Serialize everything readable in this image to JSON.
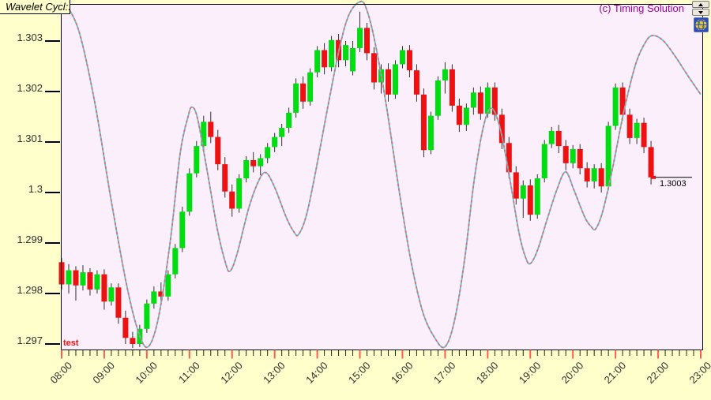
{
  "header": {
    "title": "Wavelet Cycl:.",
    "copyright": "(c) Timing Solution"
  },
  "controls": {
    "spinner_up_icon": "up-arrow",
    "spinner_down_icon": "down-arrow",
    "globe_icon": "globe"
  },
  "labels": {
    "series_tag": "test"
  },
  "colors": {
    "window_bg": "#FFFFCB",
    "plot_bg": "#FBEFFB",
    "plot_border": "#000000",
    "candle_up": "#00DD11",
    "candle_down": "#EE1111",
    "wick": "#303030",
    "cycle_red": "#E86A6A",
    "cycle_cyan": "#55C5DA",
    "hour_tick": "#FF5A5A",
    "minor_tick": "#222222",
    "axis_text": "#303030",
    "copyright": "#A000A0",
    "test_label": "#EE1111",
    "last_price_line": "#000000"
  },
  "chart_data": {
    "type": "candlestick",
    "instrument_note": "intraday 10-minute bars with wavelet cycle overlay",
    "x_axis": {
      "labels": [
        "08:00",
        "09:00",
        "10:00",
        "11:00",
        "12:00",
        "13:00",
        "14:00",
        "15:00",
        "16:00",
        "17:00",
        "18:00",
        "19:00",
        "20:00",
        "21:00",
        "22:00",
        "23:00"
      ],
      "minor_tick_minutes": 10,
      "major_tick_minutes": 60
    },
    "y_axis": {
      "ticks": [
        1.303,
        1.302,
        1.301,
        1.3,
        1.299,
        1.298,
        1.297
      ],
      "tick_labels": [
        "1.303",
        "1.302",
        "1.301",
        "1.3",
        "1.299",
        "1.298",
        "1.297"
      ]
    },
    "last_price": 1.3003,
    "last_price_label": "1.3003",
    "candles": [
      [
        "08:00",
        1.29862,
        1.2987,
        1.29808,
        1.29818
      ],
      [
        "08:10",
        1.29818,
        1.29858,
        1.298,
        1.29846
      ],
      [
        "08:20",
        1.29846,
        1.29854,
        1.29786,
        1.29816
      ],
      [
        "08:30",
        1.29816,
        1.29856,
        1.29806,
        1.29842
      ],
      [
        "08:40",
        1.29842,
        1.2985,
        1.29796,
        1.29808
      ],
      [
        "08:50",
        1.29808,
        1.29846,
        1.298,
        1.29838
      ],
      [
        "09:00",
        1.29838,
        1.29848,
        1.29768,
        1.29784
      ],
      [
        "09:10",
        1.29784,
        1.2982,
        1.29776,
        1.29812
      ],
      [
        "09:20",
        1.29812,
        1.2982,
        1.2974,
        1.29752
      ],
      [
        "09:30",
        1.29752,
        1.29766,
        1.297,
        1.29712
      ],
      [
        "09:40",
        1.29712,
        1.29724,
        1.29692,
        1.297
      ],
      [
        "09:50",
        1.297,
        1.29738,
        1.29694,
        1.2973
      ],
      [
        "10:00",
        1.2973,
        1.29788,
        1.29722,
        1.2978
      ],
      [
        "10:10",
        1.2978,
        1.29814,
        1.2977,
        1.29804
      ],
      [
        "10:20",
        1.29804,
        1.29822,
        1.29782,
        1.29794
      ],
      [
        "10:30",
        1.29794,
        1.29846,
        1.29786,
        1.29838
      ],
      [
        "10:40",
        1.29838,
        1.29898,
        1.2983,
        1.2989
      ],
      [
        "10:50",
        1.2989,
        1.29972,
        1.29882,
        1.29962
      ],
      [
        "11:00",
        1.29962,
        1.30048,
        1.29954,
        1.30038
      ],
      [
        "11:10",
        1.30038,
        1.30102,
        1.3003,
        1.30092
      ],
      [
        "11:20",
        1.30092,
        1.30152,
        1.3008,
        1.3014
      ],
      [
        "11:30",
        1.3014,
        1.3016,
        1.30098,
        1.3011
      ],
      [
        "11:40",
        1.3011,
        1.30124,
        1.30044,
        1.30056
      ],
      [
        "11:50",
        1.30056,
        1.3007,
        1.2999,
        1.30002
      ],
      [
        "12:00",
        1.30002,
        1.30016,
        1.29952,
        1.29968
      ],
      [
        "12:10",
        1.29968,
        1.30036,
        1.2996,
        1.30028
      ],
      [
        "12:20",
        1.30028,
        1.30072,
        1.3002,
        1.30064
      ],
      [
        "12:30",
        1.30064,
        1.3008,
        1.3004,
        1.30052
      ],
      [
        "12:40",
        1.30052,
        1.30076,
        1.30034,
        1.30068
      ],
      [
        "12:50",
        1.30068,
        1.30098,
        1.30058,
        1.3009
      ],
      [
        "13:00",
        1.3009,
        1.30118,
        1.3008,
        1.3011
      ],
      [
        "13:10",
        1.3011,
        1.30136,
        1.30092,
        1.30128
      ],
      [
        "13:20",
        1.30128,
        1.30168,
        1.30118,
        1.30158
      ],
      [
        "13:30",
        1.30158,
        1.30226,
        1.30148,
        1.30216
      ],
      [
        "13:40",
        1.30216,
        1.3023,
        1.30166,
        1.3018
      ],
      [
        "13:50",
        1.3018,
        1.30246,
        1.30172,
        1.30238
      ],
      [
        "14:00",
        1.30238,
        1.3029,
        1.30228,
        1.30282
      ],
      [
        "14:10",
        1.30282,
        1.30296,
        1.30234,
        1.30248
      ],
      [
        "14:20",
        1.30248,
        1.3031,
        1.3024,
        1.30302
      ],
      [
        "14:30",
        1.30302,
        1.30314,
        1.30248,
        1.30262
      ],
      [
        "14:40",
        1.30262,
        1.303,
        1.3025,
        1.30292
      ],
      [
        "14:50",
        1.3024,
        1.303,
        1.30232,
        1.30286
      ],
      [
        "15:00",
        1.30286,
        1.30358,
        1.30278,
        1.30326
      ],
      [
        "15:10",
        1.30326,
        1.30336,
        1.30262,
        1.30276
      ],
      [
        "15:20",
        1.30276,
        1.30288,
        1.30204,
        1.30218
      ],
      [
        "15:30",
        1.30218,
        1.30254,
        1.30196,
        1.30244
      ],
      [
        "15:40",
        1.30244,
        1.30256,
        1.3018,
        1.30194
      ],
      [
        "15:50",
        1.30194,
        1.30262,
        1.30186,
        1.30254
      ],
      [
        "16:00",
        1.30254,
        1.3029,
        1.30246,
        1.30282
      ],
      [
        "16:10",
        1.30282,
        1.30292,
        1.30228,
        1.30242
      ],
      [
        "16:20",
        1.30242,
        1.30254,
        1.3018,
        1.30194
      ],
      [
        "16:30",
        1.30194,
        1.30206,
        1.3007,
        1.30084
      ],
      [
        "16:40",
        1.30084,
        1.3016,
        1.30076,
        1.30152
      ],
      [
        "16:50",
        1.30152,
        1.3023,
        1.30144,
        1.30222
      ],
      [
        "17:00",
        1.30222,
        1.30258,
        1.30196,
        1.30244
      ],
      [
        "17:10",
        1.30244,
        1.30254,
        1.3016,
        1.30172
      ],
      [
        "17:20",
        1.30172,
        1.30186,
        1.3012,
        1.30134
      ],
      [
        "17:30",
        1.30134,
        1.30176,
        1.30122,
        1.30168
      ],
      [
        "17:40",
        1.30168,
        1.30208,
        1.30154,
        1.30198
      ],
      [
        "17:50",
        1.30198,
        1.3021,
        1.30144,
        1.30156
      ],
      [
        "18:00",
        1.30156,
        1.30218,
        1.30148,
        1.30208
      ],
      [
        "18:10",
        1.30208,
        1.30218,
        1.30142,
        1.30154
      ],
      [
        "18:20",
        1.30154,
        1.30166,
        1.30086,
        1.30098
      ],
      [
        "18:30",
        1.30098,
        1.3011,
        1.30028,
        1.3004
      ],
      [
        "18:40",
        1.3004,
        1.30052,
        1.29976,
        1.29988
      ],
      [
        "18:50",
        1.29988,
        1.30024,
        1.2995,
        1.30014
      ],
      [
        "19:00",
        1.30014,
        1.30026,
        1.29944,
        1.29956
      ],
      [
        "19:10",
        1.29956,
        1.30036,
        1.29948,
        1.30028
      ],
      [
        "19:20",
        1.30028,
        1.30104,
        1.3002,
        1.30096
      ],
      [
        "19:30",
        1.30096,
        1.3013,
        1.30088,
        1.30122
      ],
      [
        "19:40",
        1.30122,
        1.30134,
        1.30078,
        1.30092
      ],
      [
        "19:50",
        1.30092,
        1.30104,
        1.30044,
        1.30058
      ],
      [
        "20:00",
        1.30058,
        1.30094,
        1.30048,
        1.30086
      ],
      [
        "20:10",
        1.30086,
        1.30096,
        1.30036,
        1.30048
      ],
      [
        "20:20",
        1.30048,
        1.3006,
        1.3001,
        1.30022
      ],
      [
        "20:30",
        1.30022,
        1.30056,
        1.30008,
        1.30048
      ],
      [
        "20:40",
        1.30048,
        1.30058,
        1.3,
        1.30012
      ],
      [
        "20:50",
        1.30012,
        1.3014,
        1.30004,
        1.30132
      ],
      [
        "21:00",
        1.30132,
        1.30216,
        1.30124,
        1.30208
      ],
      [
        "21:10",
        1.30208,
        1.30218,
        1.30142,
        1.30154
      ],
      [
        "21:20",
        1.30154,
        1.30166,
        1.30096,
        1.30108
      ],
      [
        "21:30",
        1.30108,
        1.30146,
        1.30096,
        1.30138
      ],
      [
        "21:40",
        1.30138,
        1.30148,
        1.30078,
        1.3009
      ],
      [
        "21:50",
        1.3009,
        1.30102,
        1.30016,
        1.3003
      ]
    ],
    "cycle_series": {
      "name": "wavelet-cycle",
      "style": "two-tone red/cyan line",
      "points": [
        [
          4.5,
          1.30377
        ],
        [
          24.5,
          1.30319
        ],
        [
          46.7,
          1.30178
        ],
        [
          69,
          1.29991
        ],
        [
          91.2,
          1.29819
        ],
        [
          107.9,
          1.29725
        ],
        [
          121.3,
          1.29694
        ],
        [
          135.7,
          1.29748
        ],
        [
          152.4,
          1.29897
        ],
        [
          166.9,
          1.30077
        ],
        [
          178,
          1.3015
        ],
        [
          183.6,
          1.30169
        ],
        [
          191.3,
          1.30147
        ],
        [
          204.7,
          1.30045
        ],
        [
          219.2,
          1.29928
        ],
        [
          230.3,
          1.29863
        ],
        [
          237,
          1.29844
        ],
        [
          247,
          1.29878
        ],
        [
          263.7,
          1.2997
        ],
        [
          278.1,
          1.30025
        ],
        [
          288.1,
          1.30039
        ],
        [
          300.4,
          1.30009
        ],
        [
          315.9,
          1.29952
        ],
        [
          327.1,
          1.29922
        ],
        [
          333.7,
          1.29917
        ],
        [
          344.9,
          1.29956
        ],
        [
          358.2,
          1.30045
        ],
        [
          374.9,
          1.3017
        ],
        [
          391.6,
          1.30288
        ],
        [
          404.9,
          1.30353
        ],
        [
          420.5,
          1.30378
        ],
        [
          429.4,
          1.30363
        ],
        [
          441.7,
          1.30295
        ],
        [
          458.3,
          1.30163
        ],
        [
          475,
          1.30006
        ],
        [
          491.7,
          1.29866
        ],
        [
          508.4,
          1.29764
        ],
        [
          525.1,
          1.29713
        ],
        [
          539.6,
          1.29694
        ],
        [
          552.9,
          1.29744
        ],
        [
          567.4,
          1.29866
        ],
        [
          580.7,
          1.30022
        ],
        [
          594.1,
          1.30131
        ],
        [
          605.2,
          1.30167
        ],
        [
          617.4,
          1.30128
        ],
        [
          630.8,
          1.3003
        ],
        [
          644.1,
          1.2992
        ],
        [
          653,
          1.29873
        ],
        [
          659.7,
          1.29859
        ],
        [
          669.7,
          1.29884
        ],
        [
          683.1,
          1.29944
        ],
        [
          697.5,
          1.30006
        ],
        [
          709.8,
          1.30041
        ],
        [
          722,
          1.30003
        ],
        [
          736.5,
          1.29952
        ],
        [
          745.4,
          1.29933
        ],
        [
          752,
          1.29928
        ],
        [
          762.1,
          1.29963
        ],
        [
          775.4,
          1.30045
        ],
        [
          792.1,
          1.30163
        ],
        [
          808.8,
          1.30256
        ],
        [
          823.2,
          1.303
        ],
        [
          833.3,
          1.30311
        ],
        [
          847.7,
          1.303
        ],
        [
          864.4,
          1.30269
        ],
        [
          881.1,
          1.30233
        ],
        [
          900,
          1.30194
        ]
      ]
    }
  }
}
